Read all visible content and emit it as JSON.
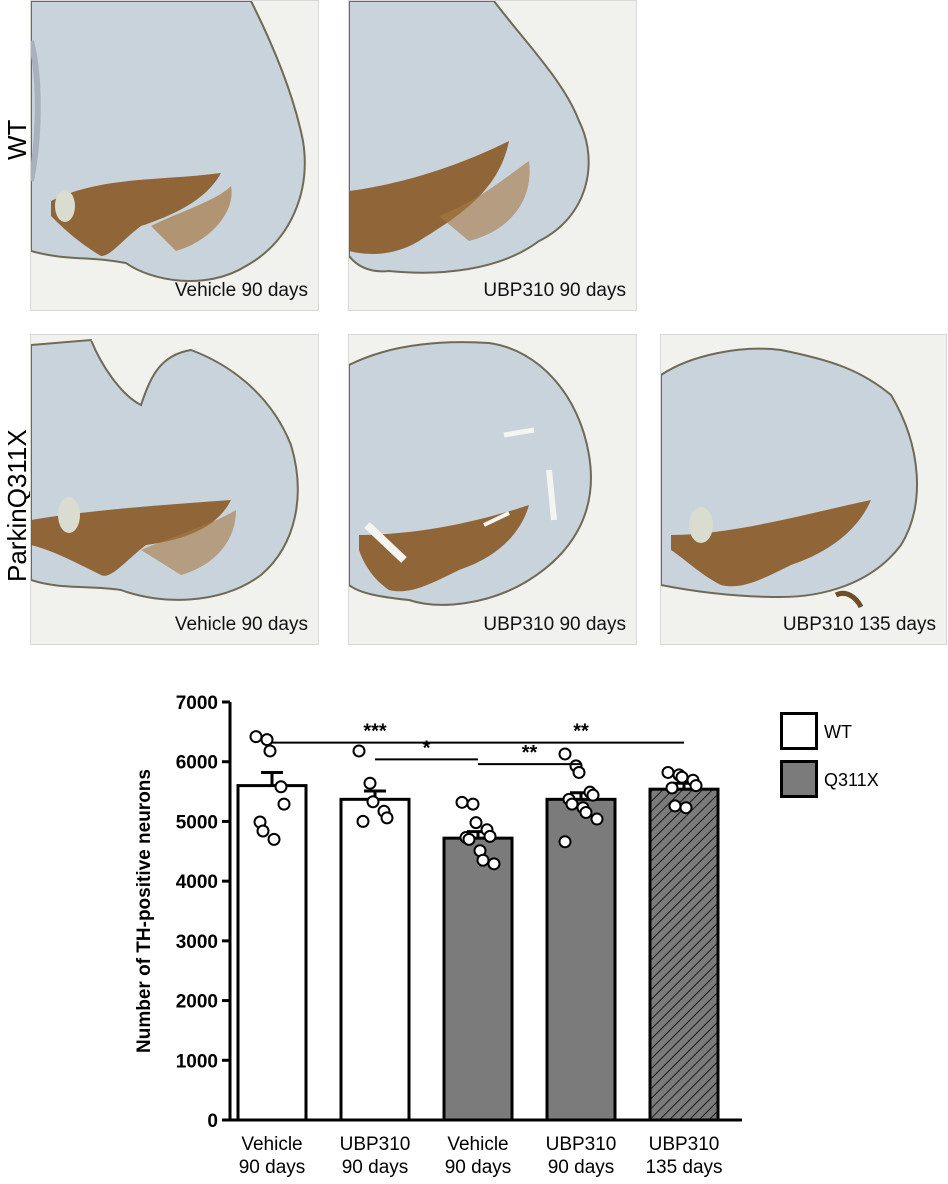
{
  "rows": [
    {
      "label": "WT",
      "panels": [
        {
          "caption": "Vehicle 90 days",
          "variant": "a"
        },
        {
          "caption": "UBP310 90 days",
          "variant": "b"
        }
      ]
    },
    {
      "label": "ParkinQ311X",
      "panels": [
        {
          "caption": "Vehicle 90 days",
          "variant": "c"
        },
        {
          "caption": "UBP310 90 days",
          "variant": "d"
        },
        {
          "caption": "UBP310 135 days",
          "variant": "e"
        }
      ]
    }
  ],
  "colors": {
    "tissue": "#c9d3dc",
    "tissue_edge": "#6f6a55",
    "stain": "#8a5a26",
    "background": "#f1f1ee",
    "wt_bar": "#ffffff",
    "q311x_bar": "#7b7b7b"
  },
  "chart_data": {
    "type": "bar",
    "ylabel": "Number of TH-positive neurons",
    "ylim": [
      0,
      7000
    ],
    "yticks": [
      0,
      1000,
      2000,
      3000,
      4000,
      5000,
      6000,
      7000
    ],
    "categories": [
      [
        "Vehicle",
        "90 days"
      ],
      [
        "UBP310",
        "90 days"
      ],
      [
        "Vehicle",
        "90 days"
      ],
      [
        "UBP310",
        "90 days"
      ],
      [
        "UBP310",
        "135 days"
      ]
    ],
    "values": [
      5600,
      5370,
      4720,
      5370,
      5540
    ],
    "errors": [
      220,
      140,
      110,
      110,
      100
    ],
    "groups": [
      "WT",
      "WT",
      "Q311X",
      "Q311X",
      "Q311X"
    ],
    "hatched": [
      false,
      false,
      false,
      false,
      true
    ],
    "points": [
      [
        6420,
        6370,
        6180,
        5580,
        5290,
        4990,
        4840,
        4700
      ],
      [
        6180,
        5640,
        5330,
        5170,
        5060,
        5000
      ],
      [
        5320,
        5290,
        4980,
        4860,
        4750,
        4730,
        4700,
        4510,
        4350,
        4290
      ],
      [
        6130,
        5930,
        5820,
        5490,
        5440,
        5370,
        5290,
        5230,
        5150,
        5040,
        4660
      ],
      [
        5820,
        5780,
        5740,
        5690,
        5600,
        5560,
        5260,
        5230
      ]
    ],
    "significance": [
      {
        "from": 0,
        "to": 2,
        "label": "***",
        "level": 6320
      },
      {
        "from": 1,
        "to": 2,
        "label": "*",
        "level": 6040
      },
      {
        "from": 2,
        "to": 4,
        "label": "**",
        "level": 6320
      },
      {
        "from": 2,
        "to": 3,
        "label": "**",
        "level": 5960
      }
    ],
    "legend": [
      {
        "name": "WT",
        "color": "#ffffff"
      },
      {
        "name": "Q311X",
        "color": "#7b7b7b"
      }
    ],
    "legend_position": "top-right"
  }
}
